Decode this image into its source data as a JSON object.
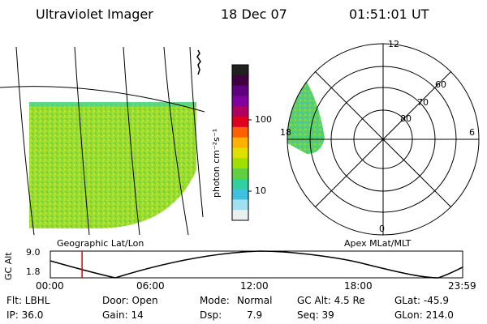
{
  "header": {
    "instrument": "Ultraviolet Imager",
    "date": "18 Dec 07",
    "time": "01:51:01 UT"
  },
  "colorbar": {
    "unit_label": "photon cm⁻²s⁻¹",
    "ticks": [
      "100",
      "10"
    ],
    "colors": [
      "#202020",
      "#400040",
      "#600080",
      "#8000a0",
      "#b00060",
      "#e00020",
      "#ff6000",
      "#ffb000",
      "#e0e000",
      "#a0e000",
      "#60d040",
      "#30d0a0",
      "#40c0e0",
      "#a0e0f0",
      "#e8f0f0"
    ]
  },
  "geo_panel": {
    "label": "Geographic Lat/Lon",
    "fill_color": "#8fd838"
  },
  "polar_panel": {
    "label": "Apex MLat/MLT",
    "mlt_labels": {
      "top": "12",
      "bottom": "0",
      "left": "18",
      "right": "6"
    },
    "lat_labels": [
      "60",
      "70",
      "80"
    ],
    "fill_color": "#60d060"
  },
  "altitude_plot": {
    "ylabel": "GC Alt",
    "y_ticks": [
      "9.0",
      "1.8"
    ],
    "x_ticks": [
      "00:00",
      "06:00",
      "12:00",
      "18:00",
      "23:59"
    ],
    "current_time_marker_color": "#e00000",
    "current_time_fraction": 0.077
  },
  "info": {
    "row1": {
      "filter": "Flt: LBHL",
      "door": "Door: Open",
      "mode_label": "Mode:",
      "mode_value": "Normal",
      "gc_alt": "GC Alt: 4.5 Re",
      "glat": "GLat: -45.9"
    },
    "row2": {
      "ip": "IP: 36.0",
      "gain": "Gain: 14",
      "dsp_label": "Dsp:",
      "dsp_value": "7.9",
      "seq": "Seq: 39",
      "glon": "GLon: 214.0"
    }
  }
}
